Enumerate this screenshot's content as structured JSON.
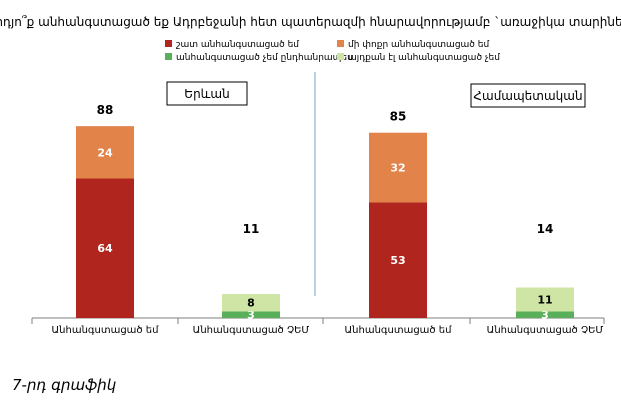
{
  "chart_data": {
    "type": "bar",
    "title": "Արդյո՞ք անհանգստացած եք Ադրբեջանի հետ պատերազմի հնարավորությամբ `առաջիկա տարիների",
    "legend": {
      "placement": "top-center",
      "entries": [
        {
          "label": "շատ անհանգստացած եմ",
          "color": "#b0251d"
        },
        {
          "label": "մի փոքր անհանգստացած եմ",
          "color": "#e2834a"
        },
        {
          "label": "անհանգստացած չեմ ընդհանրապես",
          "color": "#5ab05a"
        },
        {
          "label": "այդքան էլ անհանգստացած չեմ",
          "color": "#cfe5a6"
        }
      ]
    },
    "panels": [
      {
        "name": "Երևան",
        "categories": [
          "Անհանգստացած եմ",
          "Անհանգստացած ՉԵՄ"
        ],
        "stacks": [
          {
            "total": 88,
            "segments": [
              {
                "series": "շատ անհանգստացած եմ",
                "value": 64,
                "color": "#b0251d"
              },
              {
                "series": "մի փոքր անհանգստացած եմ",
                "value": 24,
                "color": "#e2834a"
              }
            ]
          },
          {
            "total": 11,
            "segments": [
              {
                "series": "անհանգստացած չեմ ընդհանրապես",
                "value": 3,
                "color": "#5ab05a"
              },
              {
                "series": "այդքան էլ անհանգստացած չեմ",
                "value": 8,
                "color": "#cfe5a6"
              }
            ]
          }
        ]
      },
      {
        "name": "Համապետական",
        "categories": [
          "Անհանգստացած եմ",
          "Անհանգստացած ՉԵՄ"
        ],
        "stacks": [
          {
            "total": 85,
            "segments": [
              {
                "series": "շատ անհանգստացած եմ",
                "value": 53,
                "color": "#b0251d"
              },
              {
                "series": "մի փոքր անհանգստացած եմ",
                "value": 32,
                "color": "#e2834a"
              }
            ]
          },
          {
            "total": 14,
            "segments": [
              {
                "series": "անհանգստացած չեմ ընդհանրապես",
                "value": 3,
                "color": "#5ab05a"
              },
              {
                "series": "այդքան էլ անհանգստացած չեմ",
                "value": 11,
                "color": "#cfe5a6"
              }
            ]
          }
        ]
      }
    ],
    "ylim": [
      0,
      100
    ],
    "grid": false
  },
  "caption": "7-րդ գրաֆիկ",
  "colors": {
    "divider": "#8fb3cf",
    "axis": "#7f7f7f"
  }
}
